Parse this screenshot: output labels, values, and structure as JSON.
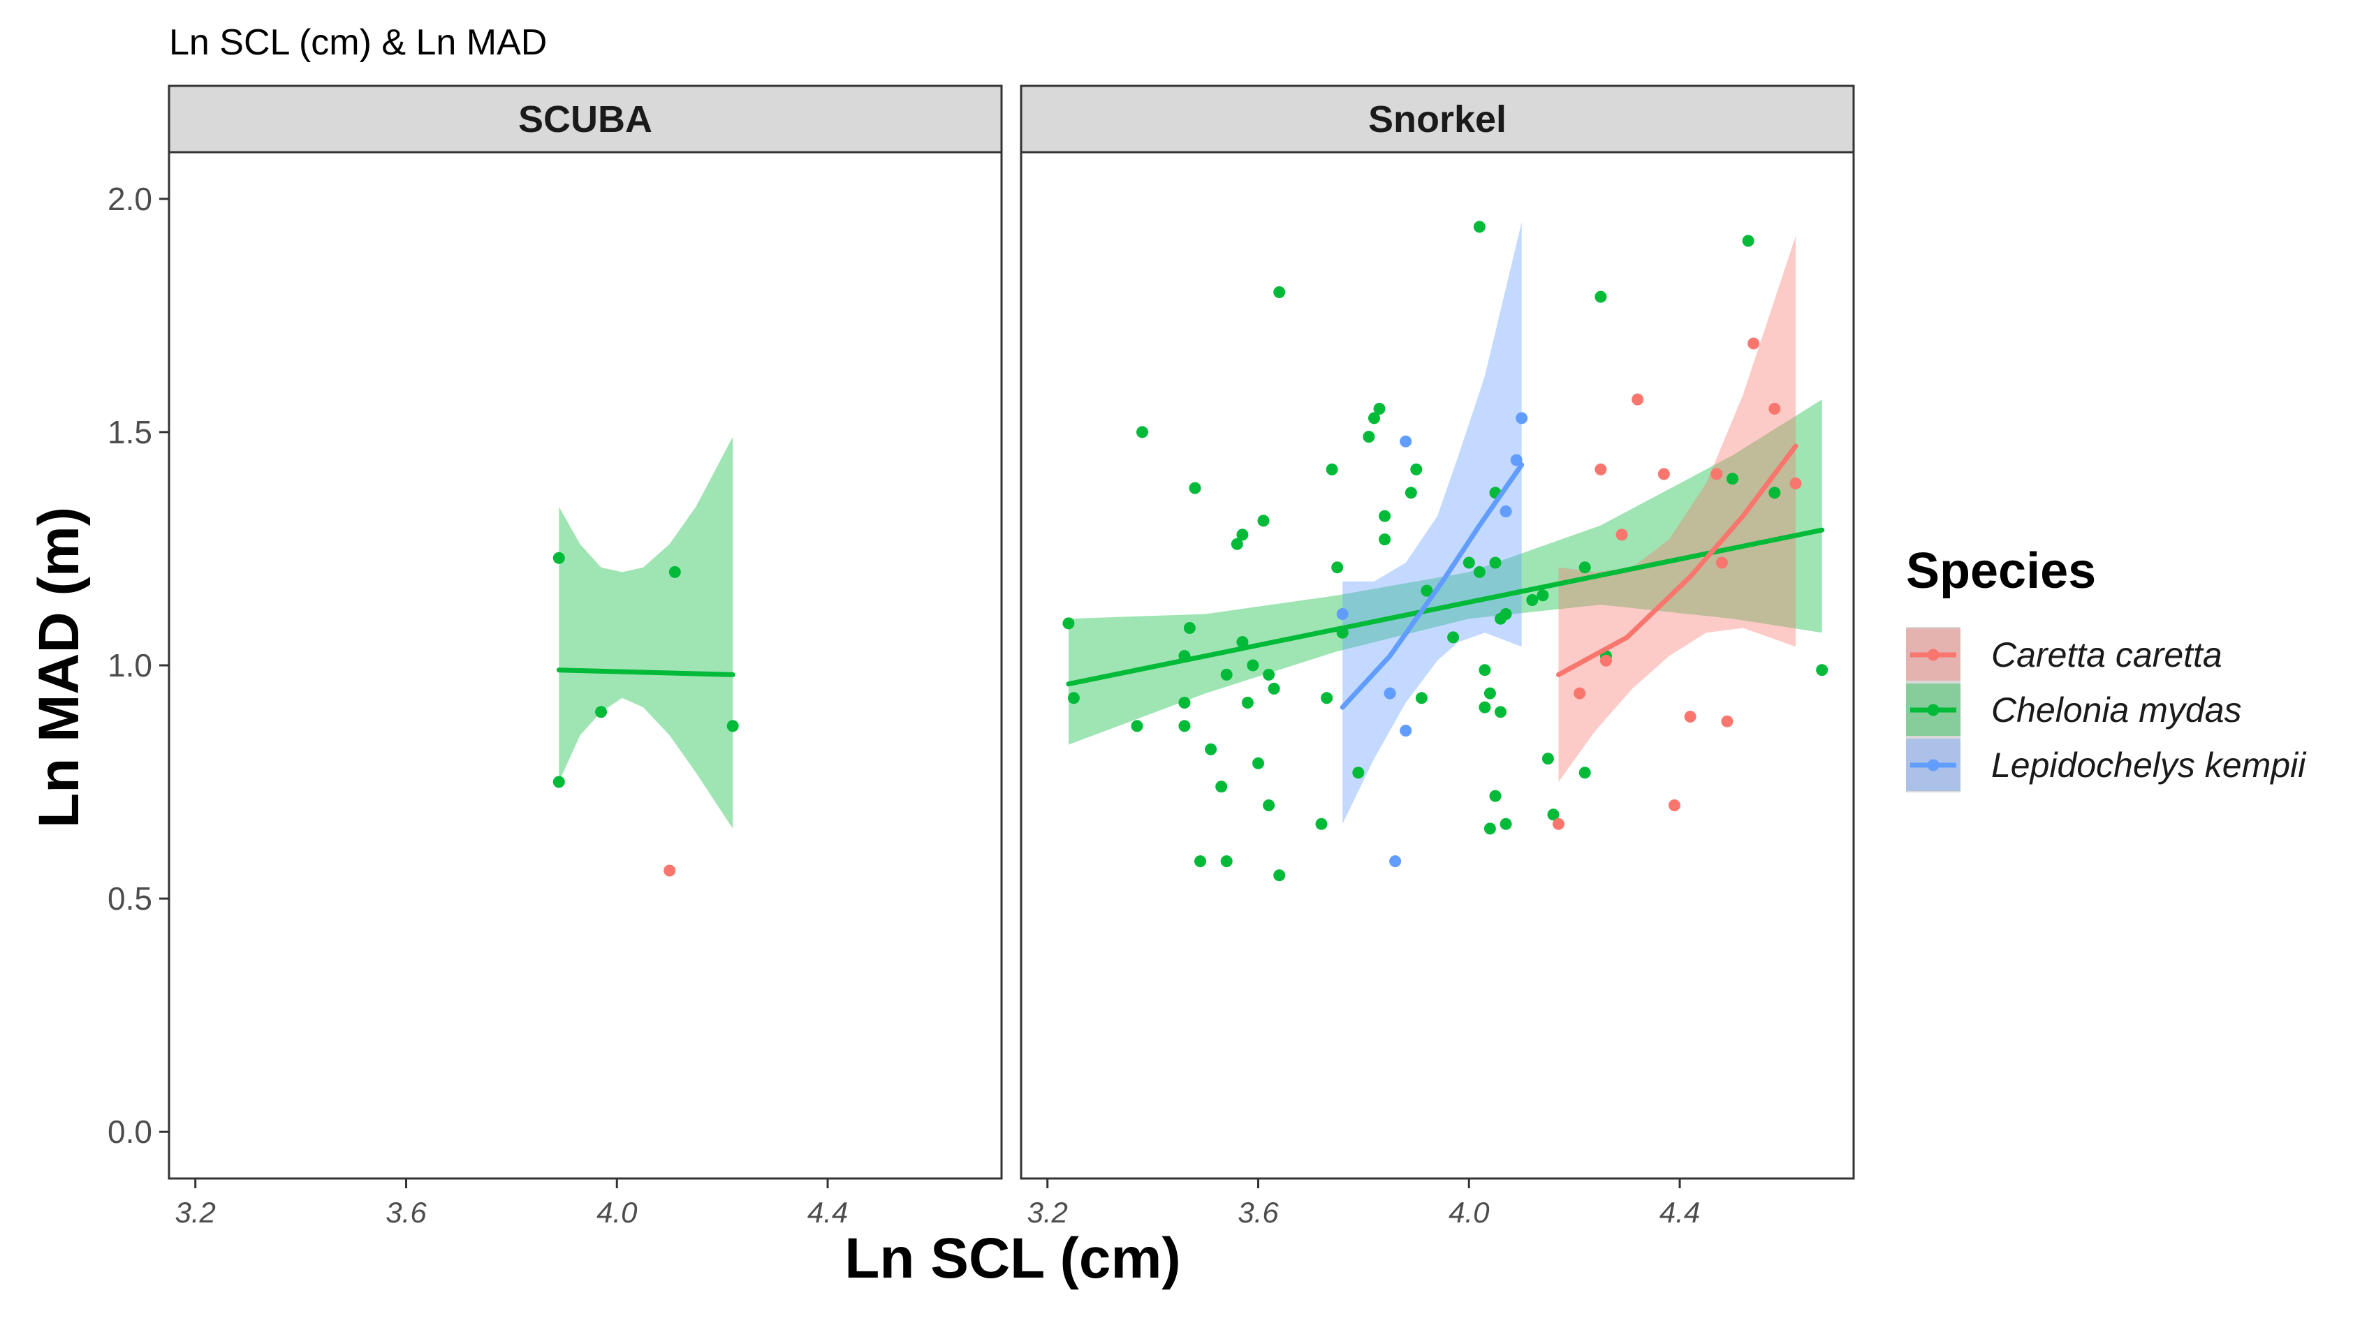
{
  "chart_data": {
    "type": "scatter",
    "title": "Ln SCL (cm) & Ln MAD",
    "xlabel": "Ln SCL (cm)",
    "ylabel": "Ln MAD (m)",
    "xlim": [
      3.15,
      4.73
    ],
    "ylim": [
      -0.1,
      2.1
    ],
    "xticks": [
      3.2,
      3.6,
      4.0,
      4.4
    ],
    "xtick_labels": [
      "3.2",
      "3.6",
      "4.0",
      "4.4"
    ],
    "yticks": [
      0.0,
      0.5,
      1.0,
      1.5,
      2.0
    ],
    "ytick_labels": [
      "0.0",
      "0.5",
      "1.0",
      "1.5",
      "2.0"
    ],
    "grid": false,
    "legend": {
      "title": "Species",
      "position": "right",
      "items": [
        {
          "label": "Caretta caretta",
          "color": "#F8766D"
        },
        {
          "label": "Chelonia mydas",
          "color": "#00BA38"
        },
        {
          "label": "Lepidochelys kempii",
          "color": "#619CFF"
        }
      ]
    },
    "panels": [
      {
        "label": "SCUBA",
        "series": [
          {
            "name": "Caretta caretta",
            "color": "#F8766D",
            "points": [
              [
                4.1,
                0.56
              ]
            ],
            "fit": null
          },
          {
            "name": "Chelonia mydas",
            "color": "#00BA38",
            "points": [
              [
                3.89,
                1.23
              ],
              [
                3.89,
                0.75
              ],
              [
                3.97,
                0.9
              ],
              [
                4.11,
                1.2
              ],
              [
                4.22,
                0.87
              ]
            ],
            "fit": {
              "x": [
                3.89,
                4.22
              ],
              "y": [
                0.99,
                0.98
              ]
            },
            "band": [
              {
                "x": 3.89,
                "lo": 0.75,
                "hi": 1.34
              },
              {
                "x": 3.93,
                "lo": 0.85,
                "hi": 1.26
              },
              {
                "x": 3.97,
                "lo": 0.9,
                "hi": 1.21
              },
              {
                "x": 4.01,
                "lo": 0.93,
                "hi": 1.2
              },
              {
                "x": 4.05,
                "lo": 0.91,
                "hi": 1.21
              },
              {
                "x": 4.1,
                "lo": 0.85,
                "hi": 1.26
              },
              {
                "x": 4.15,
                "lo": 0.77,
                "hi": 1.34
              },
              {
                "x": 4.22,
                "lo": 0.65,
                "hi": 1.49
              }
            ]
          }
        ]
      },
      {
        "label": "Snorkel",
        "series": [
          {
            "name": "Chelonia mydas",
            "color": "#00BA38",
            "points": [
              [
                3.24,
                1.09
              ],
              [
                3.25,
                0.93
              ],
              [
                3.37,
                0.87
              ],
              [
                3.38,
                1.5
              ],
              [
                3.46,
                1.02
              ],
              [
                3.46,
                0.92
              ],
              [
                3.46,
                0.87
              ],
              [
                3.47,
                1.08
              ],
              [
                3.48,
                1.38
              ],
              [
                3.49,
                0.58
              ],
              [
                3.51,
                0.82
              ],
              [
                3.53,
                0.74
              ],
              [
                3.54,
                0.98
              ],
              [
                3.54,
                0.58
              ],
              [
                3.56,
                1.26
              ],
              [
                3.57,
                1.28
              ],
              [
                3.57,
                1.05
              ],
              [
                3.58,
                0.92
              ],
              [
                3.59,
                1.0
              ],
              [
                3.6,
                0.79
              ],
              [
                3.61,
                1.31
              ],
              [
                3.62,
                0.98
              ],
              [
                3.62,
                0.7
              ],
              [
                3.63,
                0.95
              ],
              [
                3.64,
                1.8
              ],
              [
                3.64,
                0.55
              ],
              [
                3.72,
                0.66
              ],
              [
                3.73,
                0.93
              ],
              [
                3.74,
                1.42
              ],
              [
                3.75,
                1.21
              ],
              [
                3.76,
                1.07
              ],
              [
                3.79,
                0.77
              ],
              [
                3.81,
                1.49
              ],
              [
                3.82,
                1.53
              ],
              [
                3.83,
                1.55
              ],
              [
                3.84,
                1.27
              ],
              [
                3.84,
                1.32
              ],
              [
                3.89,
                1.37
              ],
              [
                3.9,
                1.42
              ],
              [
                3.91,
                0.93
              ],
              [
                3.92,
                1.16
              ],
              [
                3.97,
                1.06
              ],
              [
                4.0,
                1.22
              ],
              [
                4.02,
                1.94
              ],
              [
                4.02,
                1.2
              ],
              [
                4.03,
                0.99
              ],
              [
                4.03,
                0.91
              ],
              [
                4.04,
                0.94
              ],
              [
                4.04,
                0.65
              ],
              [
                4.05,
                1.37
              ],
              [
                4.05,
                1.22
              ],
              [
                4.05,
                0.72
              ],
              [
                4.06,
                1.1
              ],
              [
                4.06,
                0.9
              ],
              [
                4.07,
                1.11
              ],
              [
                4.07,
                0.66
              ],
              [
                4.12,
                1.14
              ],
              [
                4.14,
                1.15
              ],
              [
                4.15,
                0.8
              ],
              [
                4.16,
                0.68
              ],
              [
                4.22,
                0.77
              ],
              [
                4.22,
                1.21
              ],
              [
                4.25,
                1.79
              ],
              [
                4.26,
                1.02
              ],
              [
                4.5,
                1.4
              ],
              [
                4.53,
                1.91
              ],
              [
                4.58,
                1.37
              ],
              [
                4.67,
                0.99
              ]
            ],
            "fit": {
              "x": [
                3.24,
                4.67
              ],
              "y": [
                0.96,
                1.29
              ]
            },
            "band": [
              {
                "x": 3.24,
                "lo": 0.83,
                "hi": 1.1
              },
              {
                "x": 3.5,
                "lo": 0.94,
                "hi": 1.11
              },
              {
                "x": 3.75,
                "lo": 1.03,
                "hi": 1.15
              },
              {
                "x": 4.0,
                "lo": 1.1,
                "hi": 1.2
              },
              {
                "x": 4.25,
                "lo": 1.13,
                "hi": 1.3
              },
              {
                "x": 4.5,
                "lo": 1.1,
                "hi": 1.45
              },
              {
                "x": 4.67,
                "lo": 1.07,
                "hi": 1.57
              }
            ]
          },
          {
            "name": "Lepidochelys kempii",
            "color": "#619CFF",
            "points": [
              [
                3.76,
                1.11
              ],
              [
                3.85,
                0.94
              ],
              [
                3.86,
                0.58
              ],
              [
                3.88,
                1.48
              ],
              [
                3.88,
                0.86
              ],
              [
                4.07,
                1.33
              ],
              [
                4.09,
                1.44
              ],
              [
                4.1,
                1.53
              ]
            ],
            "fit": {
              "x": [
                3.76,
                3.85,
                3.95,
                4.02,
                4.1
              ],
              "y": [
                0.91,
                1.02,
                1.18,
                1.3,
                1.43
              ]
            },
            "band": [
              {
                "x": 3.76,
                "lo": 0.66,
                "hi": 1.18
              },
              {
                "x": 3.82,
                "lo": 0.8,
                "hi": 1.18
              },
              {
                "x": 3.88,
                "lo": 0.92,
                "hi": 1.22
              },
              {
                "x": 3.94,
                "lo": 1.01,
                "hi": 1.32
              },
              {
                "x": 3.98,
                "lo": 1.05,
                "hi": 1.45
              },
              {
                "x": 4.03,
                "lo": 1.07,
                "hi": 1.62
              },
              {
                "x": 4.1,
                "lo": 1.04,
                "hi": 1.95
              }
            ]
          },
          {
            "name": "Caretta caretta",
            "color": "#F8766D",
            "points": [
              [
                4.17,
                0.66
              ],
              [
                4.21,
                0.94
              ],
              [
                4.25,
                1.42
              ],
              [
                4.26,
                1.01
              ],
              [
                4.29,
                1.28
              ],
              [
                4.32,
                1.57
              ],
              [
                4.37,
                1.41
              ],
              [
                4.39,
                0.7
              ],
              [
                4.42,
                0.89
              ],
              [
                4.47,
                1.41
              ],
              [
                4.48,
                1.22
              ],
              [
                4.49,
                0.88
              ],
              [
                4.54,
                1.69
              ],
              [
                4.58,
                1.55
              ],
              [
                4.62,
                1.39
              ]
            ],
            "fit": {
              "x": [
                4.17,
                4.3,
                4.42,
                4.52,
                4.62
              ],
              "y": [
                0.98,
                1.06,
                1.19,
                1.32,
                1.47
              ]
            },
            "band": [
              {
                "x": 4.17,
                "lo": 0.75,
                "hi": 1.21
              },
              {
                "x": 4.24,
                "lo": 0.86,
                "hi": 1.2
              },
              {
                "x": 4.31,
                "lo": 0.95,
                "hi": 1.21
              },
              {
                "x": 4.38,
                "lo": 1.02,
                "hi": 1.27
              },
              {
                "x": 4.45,
                "lo": 1.07,
                "hi": 1.39
              },
              {
                "x": 4.52,
                "lo": 1.08,
                "hi": 1.58
              },
              {
                "x": 4.62,
                "lo": 1.04,
                "hi": 1.92
              }
            ]
          }
        ]
      }
    ]
  }
}
